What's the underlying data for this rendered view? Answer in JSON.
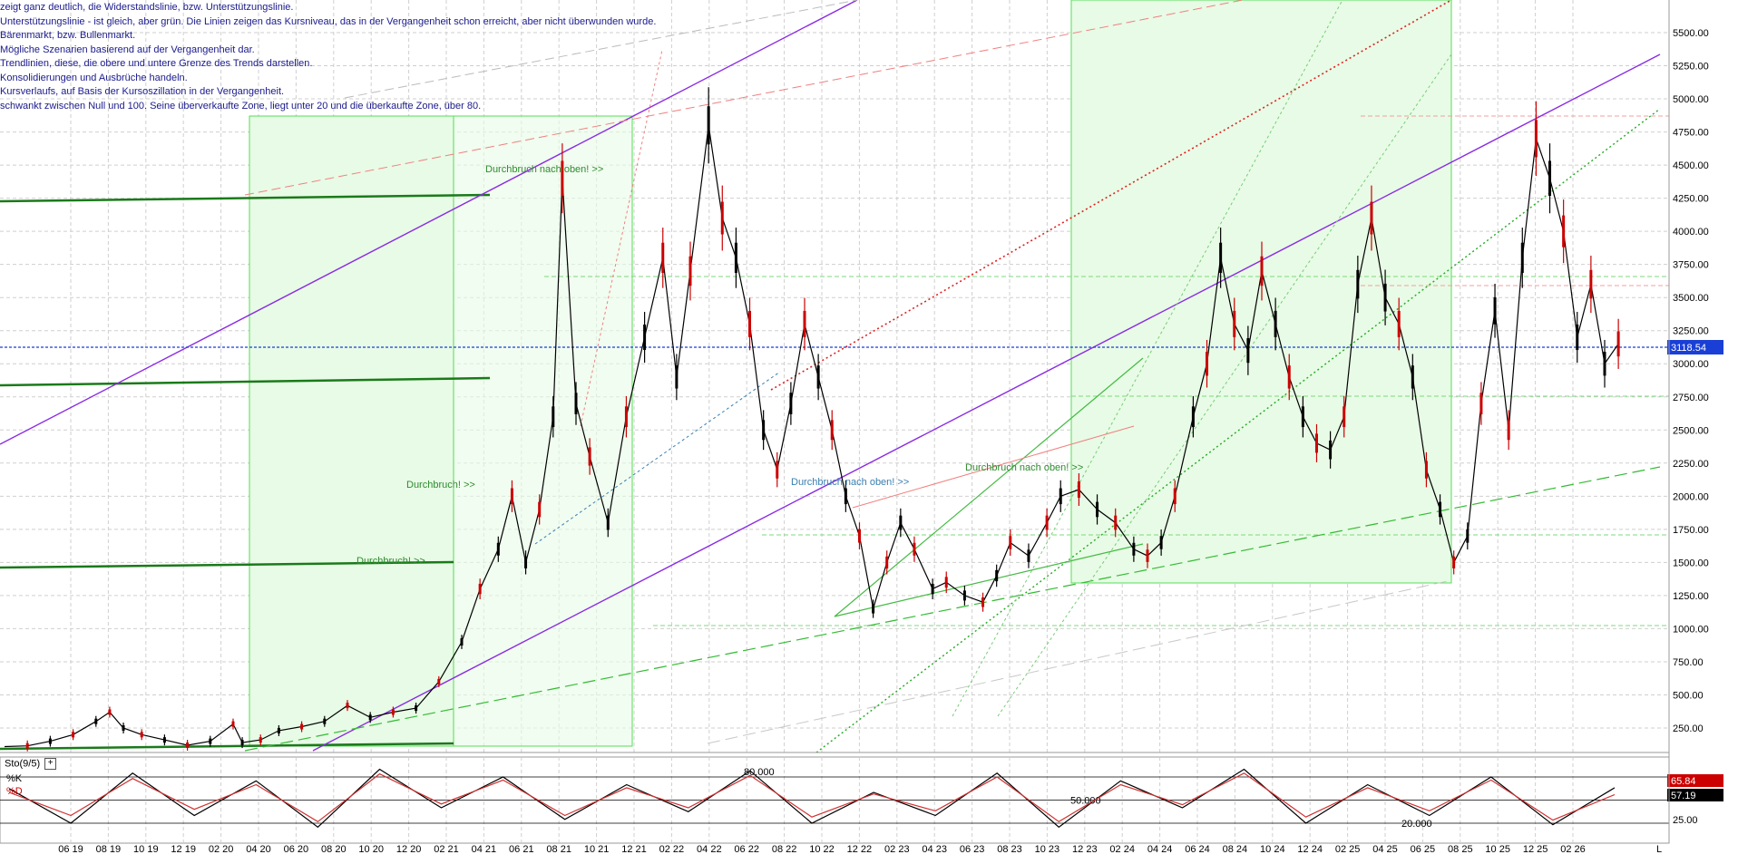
{
  "header_notes": [
    "zeigt ganz deutlich, die Widerstandslinie, bzw. Unterstützungslinie.",
    "Unterstützungslinie - ist gleich, aber grün. Die Linien zeigen das Kursniveau, das in der Vergangenheit schon erreicht, aber nicht überwunden wurde.",
    "Bärenmarkt, bzw. Bullenmarkt.",
    "Mögliche Szenarien basierend auf der Vergangenheit dar.",
    "Trendlinien, diese, die obere und untere Grenze des Trends darstellen.",
    "Konsolidierungen und Ausbrüche handeln.",
    "Kursverlaufs, auf Basis der Kursoszillation in der Vergangenheit.",
    "schwankt zwischen Null und 100. Seine überverkaufte Zone, liegt unter 20 und die überkaufte Zone, über 80."
  ],
  "annotations": [
    {
      "text": "Durchbruch nach oben! >>",
      "color": "#2e8b2e"
    },
    {
      "text": "Durchbruch! >>",
      "color": "#2e8b2e"
    },
    {
      "text": "Durchbruch! >>",
      "color": "#2e8b2e"
    },
    {
      "text": "Durchbruch nach oben! >>",
      "color": "#3a7fb0"
    },
    {
      "text": "Durchbruch nach oben! >>",
      "color": "#2e8b2e"
    }
  ],
  "price_badge": "3118.54",
  "stoch_badges": {
    "k": "65.84",
    "d": "57.19"
  },
  "stoch_title": "Sto(9/5)",
  "stoch_plus": "+",
  "stoch_legend": [
    "%K",
    "%D"
  ],
  "stoch_levels_text": [
    "80.000",
    "50.000",
    "20.000"
  ],
  "corner_marker": "L",
  "colors": {
    "price_line": "#000000",
    "candle_up": "#000000",
    "candle_down": "#cc0000",
    "grid": "#cfcfcf",
    "support": "#3fbf3f",
    "resistance": "#e06060",
    "trend_purple": "#8a2be2",
    "current_price": "#1a3fd6",
    "stoch_k": "#000000",
    "stoch_d": "#d03030",
    "box_fill": "#e8fbe6",
    "box_stroke": "#55dd55"
  },
  "chart_data": [
    {
      "type": "line",
      "ylim": [
        0,
        5750
      ],
      "yticks": [
        250,
        500,
        750,
        1000,
        1250,
        1500,
        1750,
        2000,
        2250,
        2500,
        2750,
        3000,
        3250,
        3500,
        3750,
        4000,
        4250,
        4500,
        4750,
        5000,
        5250,
        5500
      ],
      "ytick_labels": [
        "250.00",
        "500.00",
        "750.00",
        "1000.00",
        "1250.00",
        "1500.00",
        "1750.00",
        "2000.00",
        "2250.00",
        "2500.00",
        "2750.00",
        "3000.00",
        "3250.00",
        "3500.00",
        "3750.00",
        "4000.00",
        "4250.00",
        "4500.00",
        "4750.00",
        "5000.00",
        "5250.00",
        "5500.00"
      ],
      "x_tick_labels": [
        "06 19",
        "08 19",
        "10 19",
        "12 19",
        "02 20",
        "04 20",
        "06 20",
        "08 20",
        "10 20",
        "12 20",
        "02 21",
        "04 21",
        "06 21",
        "08 21",
        "10 21",
        "12 21",
        "02 22",
        "04 22",
        "06 22",
        "08 22",
        "10 22",
        "12 22",
        "02 23",
        "04 23",
        "06 23",
        "08 23",
        "10 23",
        "12 23",
        "02 24",
        "04 24",
        "06 24",
        "08 24",
        "10 24",
        "12 24",
        "02 25",
        "04 25",
        "06 25",
        "08 25",
        "10 25",
        "12 25",
        "02 26"
      ],
      "series": [
        {
          "values": [
            [
              0,
              110
            ],
            [
              0.5,
              115
            ],
            [
              1,
              150
            ],
            [
              1.5,
              200
            ],
            [
              2,
              300
            ],
            [
              2.3,
              370
            ],
            [
              2.6,
              250
            ],
            [
              3,
              200
            ],
            [
              3.5,
              160
            ],
            [
              4,
              120
            ],
            [
              4.5,
              150
            ],
            [
              5,
              280
            ],
            [
              5.2,
              140
            ],
            [
              5.6,
              160
            ],
            [
              6,
              230
            ],
            [
              6.5,
              260
            ],
            [
              7,
              300
            ],
            [
              7.5,
              420
            ],
            [
              8,
              330
            ],
            [
              8.5,
              370
            ],
            [
              9,
              400
            ],
            [
              9.5,
              600
            ],
            [
              10,
              900
            ],
            [
              10.4,
              1300
            ],
            [
              10.8,
              1600
            ],
            [
              11.1,
              2000
            ],
            [
              11.4,
              1500
            ],
            [
              11.7,
              1900
            ],
            [
              12,
              2600
            ],
            [
              12.2,
              4400
            ],
            [
              12.5,
              2700
            ],
            [
              12.8,
              2300
            ],
            [
              13.2,
              1800
            ],
            [
              13.6,
              2600
            ],
            [
              14,
              3200
            ],
            [
              14.4,
              3800
            ],
            [
              14.7,
              2900
            ],
            [
              15,
              3700
            ],
            [
              15.4,
              4800
            ],
            [
              15.7,
              4100
            ],
            [
              16,
              3800
            ],
            [
              16.3,
              3300
            ],
            [
              16.6,
              2500
            ],
            [
              16.9,
              2200
            ],
            [
              17.2,
              2700
            ],
            [
              17.5,
              3300
            ],
            [
              17.8,
              2900
            ],
            [
              18.1,
              2500
            ],
            [
              18.4,
              2000
            ],
            [
              18.7,
              1700
            ],
            [
              19,
              1150
            ],
            [
              19.3,
              1500
            ],
            [
              19.6,
              1800
            ],
            [
              19.9,
              1600
            ],
            [
              20.3,
              1300
            ],
            [
              20.6,
              1350
            ],
            [
              21,
              1250
            ],
            [
              21.4,
              1200
            ],
            [
              21.7,
              1400
            ],
            [
              22,
              1650
            ],
            [
              22.4,
              1550
            ],
            [
              22.8,
              1800
            ],
            [
              23.1,
              2000
            ],
            [
              23.5,
              2050
            ],
            [
              23.9,
              1900
            ],
            [
              24.3,
              1800
            ],
            [
              24.7,
              1600
            ],
            [
              25,
              1550
            ],
            [
              25.3,
              1650
            ],
            [
              25.6,
              2000
            ],
            [
              26,
              2600
            ],
            [
              26.3,
              3000
            ],
            [
              26.6,
              3800
            ],
            [
              26.9,
              3300
            ],
            [
              27.2,
              3100
            ],
            [
              27.5,
              3700
            ],
            [
              27.8,
              3300
            ],
            [
              28.1,
              2900
            ],
            [
              28.4,
              2600
            ],
            [
              28.7,
              2400
            ],
            [
              29,
              2350
            ],
            [
              29.3,
              2600
            ],
            [
              29.6,
              3600
            ],
            [
              29.9,
              4100
            ],
            [
              30.2,
              3500
            ],
            [
              30.5,
              3300
            ],
            [
              30.8,
              2900
            ],
            [
              31.1,
              2200
            ],
            [
              31.4,
              1900
            ],
            [
              31.7,
              1500
            ],
            [
              32,
              1700
            ],
            [
              32.3,
              2700
            ],
            [
              32.6,
              3400
            ],
            [
              32.9,
              2500
            ],
            [
              33.2,
              3800
            ],
            [
              33.5,
              4700
            ],
            [
              33.8,
              4400
            ],
            [
              34.1,
              4000
            ],
            [
              34.4,
              3200
            ],
            [
              34.7,
              3600
            ],
            [
              35,
              3000
            ],
            [
              35.3,
              3150
            ]
          ]
        }
      ]
    },
    {
      "type": "line",
      "title": "Sto(9/5)",
      "ylim": [
        0,
        100
      ],
      "yticks": [
        25
      ],
      "ytick_labels": [
        "25.00"
      ],
      "levels": [
        80,
        50,
        20
      ],
      "series": [
        {
          "name": "%K",
          "values": [
            65,
            20,
            85,
            30,
            75,
            15,
            90,
            40,
            80,
            25,
            70,
            35,
            88,
            20,
            60,
            30,
            85,
            15,
            75,
            40,
            90,
            20,
            70,
            30,
            80,
            18,
            66
          ]
        },
        {
          "name": "%D",
          "values": [
            60,
            30,
            78,
            38,
            70,
            22,
            84,
            45,
            76,
            30,
            66,
            40,
            82,
            28,
            58,
            36,
            80,
            22,
            70,
            44,
            85,
            28,
            66,
            36,
            76,
            24,
            57
          ]
        }
      ]
    }
  ]
}
